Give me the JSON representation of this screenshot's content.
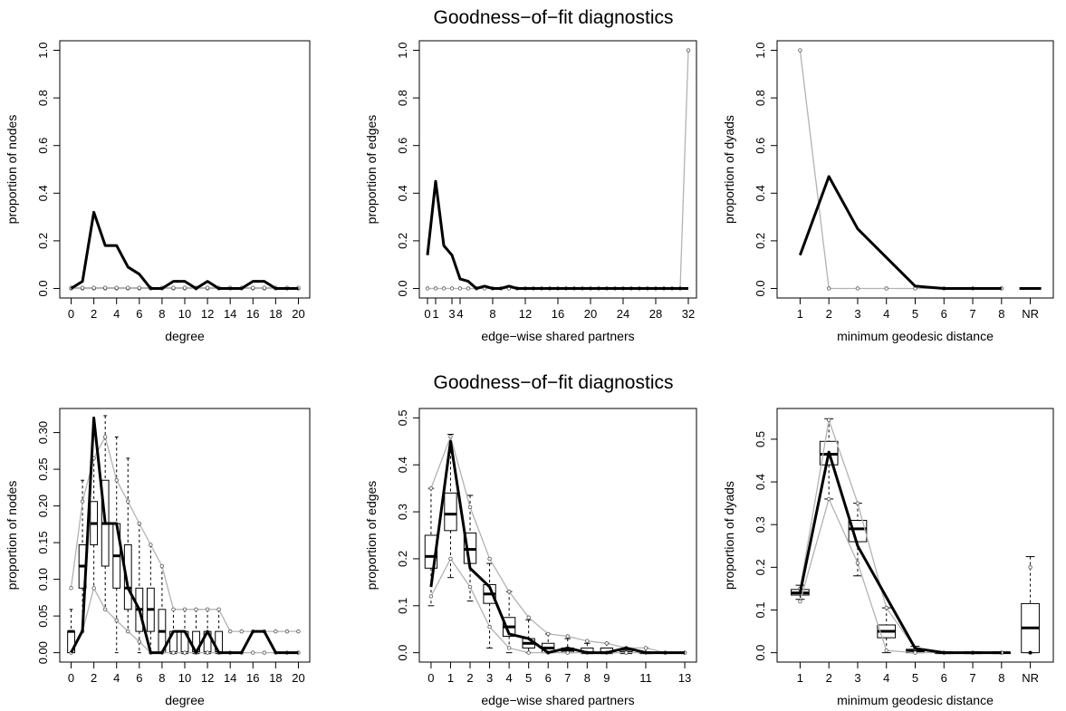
{
  "figure_titles": [
    "Goodness−of−fit diagnostics",
    "Goodness−of−fit diagnostics"
  ],
  "colors": {
    "observed": "#000000",
    "simulated": "#b3b3b3",
    "box": "#000000"
  },
  "chart_data": [
    {
      "type": "line",
      "row": 0,
      "xlabel": "degree",
      "ylabel": "proportion of nodes",
      "x": [
        0,
        1,
        2,
        3,
        4,
        5,
        6,
        7,
        8,
        9,
        10,
        11,
        12,
        13,
        14,
        15,
        16,
        17,
        18,
        19,
        20
      ],
      "xticks": [
        "0",
        "2",
        "4",
        "6",
        "8",
        "10",
        "12",
        "14",
        "16",
        "18",
        "20"
      ],
      "xtick_values": [
        0,
        2,
        4,
        6,
        8,
        10,
        12,
        14,
        16,
        18,
        20
      ],
      "ylim": [
        0,
        1.0
      ],
      "yticks": [
        "0.0",
        "0.2",
        "0.4",
        "0.6",
        "0.8",
        "1.0"
      ],
      "ytick_values": [
        0,
        0.2,
        0.4,
        0.6,
        0.8,
        1.0
      ],
      "observed": [
        0,
        0.03,
        0.32,
        0.18,
        0.18,
        0.09,
        0.06,
        0,
        0,
        0.03,
        0.03,
        0,
        0.03,
        0,
        0,
        0,
        0.03,
        0.03,
        0,
        0,
        0
      ],
      "simulated_lines": [
        [
          0,
          0,
          0,
          0,
          0,
          0,
          0,
          0,
          0,
          0,
          0,
          0,
          0,
          0,
          0,
          0,
          0,
          0,
          0,
          0,
          0
        ],
        [
          0.003,
          0.003,
          0.003,
          0.003,
          0.003,
          0.003,
          0.003,
          0.003,
          0.003,
          0.003,
          0.003,
          0.003,
          0.003,
          0.003,
          0.003,
          0.003,
          0.003,
          0.003,
          0.003,
          0.003,
          0.003
        ]
      ],
      "boxes": []
    },
    {
      "type": "line",
      "row": 0,
      "xlabel": "edge−wise shared partners",
      "ylabel": "proportion of edges",
      "x": [
        0,
        1,
        2,
        3,
        4,
        5,
        6,
        7,
        8,
        9,
        10,
        11,
        12,
        13,
        14,
        15,
        16,
        17,
        18,
        19,
        20,
        21,
        22,
        23,
        24,
        25,
        26,
        27,
        28,
        29,
        30,
        31,
        32
      ],
      "xticks": [
        "0",
        "4",
        "8",
        "12",
        "16",
        "20",
        "24",
        "28",
        "32",
        "1",
        "3"
      ],
      "xtick_values": [
        0,
        4,
        8,
        12,
        16,
        20,
        24,
        28,
        32,
        1,
        3
      ],
      "ylim": [
        0,
        1.0
      ],
      "yticks": [
        "0.0",
        "0.2",
        "0.4",
        "0.6",
        "0.8",
        "1.0"
      ],
      "ytick_values": [
        0,
        0.2,
        0.4,
        0.6,
        0.8,
        1.0
      ],
      "observed": [
        0.14,
        0.45,
        0.18,
        0.14,
        0.04,
        0.03,
        0,
        0.01,
        0,
        0,
        0.01,
        0,
        0,
        0,
        0,
        0,
        0,
        0,
        0,
        0,
        0,
        0,
        0,
        0,
        0,
        0,
        0,
        0,
        0,
        0,
        0,
        0,
        0
      ],
      "simulated_lines": [
        [
          0,
          0,
          0,
          0,
          0,
          0,
          0,
          0,
          0,
          0,
          0,
          0,
          0,
          0,
          0,
          0,
          0,
          0,
          0,
          0,
          0,
          0,
          0,
          0,
          0,
          0,
          0,
          0,
          0,
          0,
          0,
          0,
          1.0
        ]
      ],
      "boxes": []
    },
    {
      "type": "line",
      "row": 0,
      "xlabel": "minimum geodesic distance",
      "ylabel": "proportion of dyads",
      "x": [
        1,
        2,
        3,
        4,
        5,
        6,
        7,
        8,
        9
      ],
      "xticks": [
        "1",
        "2",
        "3",
        "4",
        "5",
        "6",
        "7",
        "8",
        "NR"
      ],
      "xtick_values": [
        1,
        2,
        3,
        4,
        5,
        6,
        7,
        8,
        9
      ],
      "ylim": [
        0,
        1.0
      ],
      "yticks": [
        "0.0",
        "0.2",
        "0.4",
        "0.6",
        "0.8",
        "1.0"
      ],
      "ytick_values": [
        0,
        0.2,
        0.4,
        0.6,
        0.8,
        1.0
      ],
      "observed": [
        0.14,
        0.47,
        0.25,
        0.13,
        0.01,
        0,
        0,
        0,
        null
      ],
      "observed_nr": 0,
      "simulated_lines": [
        [
          1.0,
          0,
          0,
          0,
          0,
          0,
          0,
          0,
          null
        ]
      ],
      "sim_nr": 0,
      "boxes": []
    },
    {
      "type": "line",
      "row": 1,
      "xlabel": "degree",
      "ylabel": "proportion of nodes",
      "x": [
        0,
        1,
        2,
        3,
        4,
        5,
        6,
        7,
        8,
        9,
        10,
        11,
        12,
        13,
        14,
        15,
        16,
        17,
        18,
        19,
        20
      ],
      "xticks": [
        "0",
        "2",
        "4",
        "6",
        "8",
        "10",
        "12",
        "14",
        "16",
        "18",
        "20"
      ],
      "xtick_values": [
        0,
        2,
        4,
        6,
        8,
        10,
        12,
        14,
        16,
        18,
        20
      ],
      "ylim": [
        0,
        0.32
      ],
      "yticks": [
        "0.00",
        "0.05",
        "0.10",
        "0.15",
        "0.20",
        "0.25",
        "0.30"
      ],
      "ytick_values": [
        0,
        0.05,
        0.1,
        0.15,
        0.2,
        0.25,
        0.3
      ],
      "observed": [
        0,
        0.03,
        0.32,
        0.176,
        0.176,
        0.088,
        0.059,
        0,
        0,
        0.029,
        0.029,
        0,
        0.029,
        0,
        0,
        0,
        0.029,
        0.029,
        0,
        0,
        0
      ],
      "simulated_lines": [
        [
          0.088,
          0.206,
          0.265,
          0.294,
          0.235,
          0.206,
          0.176,
          0.147,
          0.118,
          0.059,
          0.059,
          0.059,
          0.059,
          0.059,
          0.029,
          0.029,
          0.029,
          0.029,
          0.029,
          0.029,
          0.029
        ],
        [
          0,
          0.029,
          0.088,
          0.059,
          0.044,
          0.029,
          0.015,
          0,
          0,
          0,
          0,
          0,
          0,
          0,
          0,
          0,
          0,
          0,
          0,
          0,
          0
        ]
      ],
      "boxes": [
        {
          "x": 0,
          "min": 0,
          "q1": 0,
          "med": 0.029,
          "q3": 0.029,
          "max": 0.059
        },
        {
          "x": 1,
          "min": 0.029,
          "q1": 0.088,
          "med": 0.118,
          "q3": 0.147,
          "max": 0.235
        },
        {
          "x": 2,
          "min": 0.088,
          "q1": 0.147,
          "med": 0.176,
          "q3": 0.206,
          "max": 0.265
        },
        {
          "x": 3,
          "min": 0.059,
          "q1": 0.118,
          "med": 0.176,
          "q3": 0.235,
          "max": 0.323
        },
        {
          "x": 4,
          "min": 0,
          "q1": 0.088,
          "med": 0.132,
          "q3": 0.176,
          "max": 0.294
        },
        {
          "x": 5,
          "min": 0.029,
          "q1": 0.059,
          "med": 0.088,
          "q3": 0.147,
          "max": 0.265
        },
        {
          "x": 6,
          "min": 0,
          "q1": 0.029,
          "med": 0.059,
          "q3": 0.088,
          "max": 0.176
        },
        {
          "x": 7,
          "min": 0,
          "q1": 0.029,
          "med": 0.059,
          "q3": 0.088,
          "max": 0.147
        },
        {
          "x": 8,
          "min": 0,
          "q1": 0,
          "med": 0.029,
          "q3": 0.059,
          "max": 0.118
        },
        {
          "x": 9,
          "min": 0,
          "q1": 0,
          "med": 0,
          "q3": 0.029,
          "max": 0.059
        },
        {
          "x": 10,
          "min": 0,
          "q1": 0,
          "med": 0,
          "q3": 0.029,
          "max": 0.059
        },
        {
          "x": 11,
          "min": 0,
          "q1": 0,
          "med": 0,
          "q3": 0.029,
          "max": 0.059
        },
        {
          "x": 12,
          "min": 0,
          "q1": 0,
          "med": 0,
          "q3": 0.029,
          "max": 0.059
        },
        {
          "x": 13,
          "min": 0,
          "q1": 0,
          "med": 0,
          "q3": 0.029,
          "max": 0.059
        }
      ]
    },
    {
      "type": "line",
      "row": 1,
      "xlabel": "edge−wise shared partners",
      "ylabel": "proportion of edges",
      "x": [
        0,
        1,
        2,
        3,
        4,
        5,
        6,
        7,
        8,
        9,
        10,
        11,
        12,
        13
      ],
      "xticks": [
        "0",
        "1",
        "2",
        "3",
        "4",
        "5",
        "6",
        "7",
        "8",
        "9",
        "11",
        "13"
      ],
      "xtick_values": [
        0,
        1,
        2,
        3,
        4,
        5,
        6,
        7,
        8,
        9,
        11,
        13
      ],
      "ylim": [
        0,
        0.5
      ],
      "yticks": [
        "0.0",
        "0.1",
        "0.2",
        "0.3",
        "0.4",
        "0.5"
      ],
      "ytick_values": [
        0,
        0.1,
        0.2,
        0.3,
        0.4,
        0.5
      ],
      "observed": [
        0.14,
        0.45,
        0.18,
        0.14,
        0.04,
        0.03,
        0,
        0.01,
        0,
        0,
        0.01,
        0,
        0,
        0
      ],
      "simulated_lines": [
        [
          0.35,
          0.46,
          0.31,
          0.2,
          0.13,
          0.075,
          0.04,
          0.035,
          0.025,
          0.02,
          0.01,
          0.01,
          0,
          0
        ],
        [
          0.12,
          0.2,
          0.14,
          0.055,
          0.01,
          0,
          0,
          0,
          0,
          0,
          0,
          0,
          0,
          0
        ]
      ],
      "boxes": [
        {
          "x": 0,
          "min": 0.1,
          "q1": 0.18,
          "med": 0.205,
          "q3": 0.25,
          "max": 0.35
        },
        {
          "x": 1,
          "min": 0.16,
          "q1": 0.26,
          "med": 0.295,
          "q3": 0.34,
          "max": 0.465
        },
        {
          "x": 2,
          "min": 0.11,
          "q1": 0.19,
          "med": 0.22,
          "q3": 0.255,
          "max": 0.335
        },
        {
          "x": 3,
          "min": 0.01,
          "q1": 0.105,
          "med": 0.125,
          "q3": 0.145,
          "max": 0.19
        },
        {
          "x": 4,
          "min": 0,
          "q1": 0.035,
          "med": 0.055,
          "q3": 0.075,
          "max": 0.13
        },
        {
          "x": 5,
          "min": 0,
          "q1": 0.01,
          "med": 0.02,
          "q3": 0.03,
          "max": 0.07
        },
        {
          "x": 6,
          "min": 0,
          "q1": 0,
          "med": 0.01,
          "q3": 0.02,
          "max": 0.04
        },
        {
          "x": 7,
          "min": 0,
          "q1": 0,
          "med": 0.005,
          "q3": 0.01,
          "max": 0.03
        },
        {
          "x": 8,
          "min": 0,
          "q1": 0,
          "med": 0,
          "q3": 0.01,
          "max": 0.02
        },
        {
          "x": 9,
          "min": 0,
          "q1": 0,
          "med": 0,
          "q3": 0.01,
          "max": 0.02
        },
        {
          "x": 10,
          "min": 0,
          "q1": 0,
          "med": 0,
          "q3": 0.005,
          "max": 0.01
        },
        {
          "x": 11,
          "min": 0,
          "q1": 0,
          "med": 0,
          "q3": 0,
          "max": 0.01
        }
      ]
    },
    {
      "type": "line",
      "row": 1,
      "xlabel": "minimum geodesic distance",
      "ylabel": "proportion of dyads",
      "x": [
        1,
        2,
        3,
        4,
        5,
        6,
        7,
        8,
        9
      ],
      "xticks": [
        "1",
        "2",
        "3",
        "4",
        "5",
        "6",
        "7",
        "8",
        "NR"
      ],
      "xtick_values": [
        1,
        2,
        3,
        4,
        5,
        6,
        7,
        8,
        9
      ],
      "ylim": [
        0,
        0.55
      ],
      "yticks": [
        "0.0",
        "0.1",
        "0.2",
        "0.3",
        "0.4",
        "0.5"
      ],
      "ytick_values": [
        0,
        0.1,
        0.2,
        0.3,
        0.4,
        0.5
      ],
      "observed": [
        0.14,
        0.47,
        0.25,
        0.13,
        0.01,
        0,
        0,
        0,
        null
      ],
      "observed_nr": 0,
      "simulated_lines": [
        [
          0.15,
          0.545,
          0.35,
          0.105,
          0.01,
          0,
          0,
          0,
          null
        ],
        [
          0.12,
          0.36,
          0.21,
          0.005,
          0,
          0,
          0,
          0,
          null
        ]
      ],
      "sim_nr": 0.2,
      "boxes": [
        {
          "x": 1,
          "min": 0.125,
          "q1": 0.135,
          "med": 0.14,
          "q3": 0.148,
          "max": 0.158
        },
        {
          "x": 2,
          "min": 0.36,
          "q1": 0.44,
          "med": 0.465,
          "q3": 0.495,
          "max": 0.548
        },
        {
          "x": 3,
          "min": 0.18,
          "q1": 0.26,
          "med": 0.29,
          "q3": 0.31,
          "max": 0.35
        },
        {
          "x": 4,
          "min": 0,
          "q1": 0.035,
          "med": 0.05,
          "q3": 0.065,
          "max": 0.105
        },
        {
          "x": 5,
          "min": 0,
          "q1": 0,
          "med": 0.004,
          "q3": 0.008,
          "max": 0.015
        },
        {
          "x": 6,
          "min": 0,
          "q1": 0,
          "med": 0,
          "q3": 0,
          "max": 0
        },
        {
          "x": 7,
          "min": 0,
          "q1": 0,
          "med": 0,
          "q3": 0,
          "max": 0
        },
        {
          "x": 8,
          "min": 0,
          "q1": 0,
          "med": 0,
          "q3": 0,
          "max": 0
        },
        {
          "x": 9,
          "min": 0,
          "q1": 0,
          "med": 0.058,
          "q3": 0.115,
          "max": 0.225
        }
      ]
    }
  ]
}
